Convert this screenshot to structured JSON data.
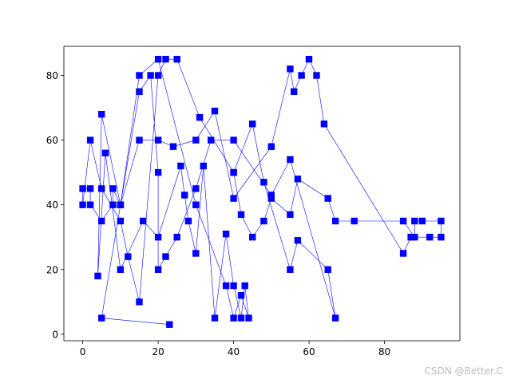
{
  "watermark": "CSDN @Better.C",
  "chart_data": {
    "type": "line",
    "title": "",
    "xlabel": "",
    "ylabel": "",
    "xlim": [
      -5,
      100
    ],
    "ylim": [
      -2,
      89
    ],
    "xticks": [
      0,
      20,
      40,
      60,
      80
    ],
    "yticks": [
      0,
      20,
      40,
      60,
      80
    ],
    "grid": false,
    "legend": "none",
    "marker": "square",
    "color": "#0000ff",
    "series": [
      {
        "x": [
          40,
          45,
          48,
          55,
          57,
          65,
          67,
          55,
          50,
          40,
          34,
          30,
          25,
          22,
          20,
          20,
          18,
          15,
          10,
          8,
          8,
          5,
          2,
          2,
          0,
          0,
          2,
          5,
          10,
          12,
          15,
          20,
          22,
          25,
          31,
          40,
          42,
          45,
          48,
          50,
          55,
          57,
          65,
          67,
          72,
          85,
          88,
          88,
          90,
          95,
          95,
          92,
          87,
          85,
          64,
          62,
          60,
          58,
          56,
          55,
          50,
          40,
          35,
          30,
          24,
          20,
          15,
          10,
          5,
          4,
          6,
          10,
          16,
          20,
          26,
          27,
          28,
          30,
          32,
          35,
          38,
          40,
          42,
          43,
          44,
          42,
          40,
          38,
          30,
          20,
          15,
          10,
          5,
          23
        ],
        "y": [
          50,
          65,
          47,
          20,
          29,
          20,
          5,
          54,
          43,
          60,
          60,
          45,
          30,
          24,
          20,
          50,
          80,
          75,
          40,
          45,
          40,
          35,
          40,
          45,
          45,
          40,
          60,
          45,
          35,
          24,
          10,
          80,
          85,
          85,
          67,
          50,
          37,
          30,
          35,
          42,
          37,
          48,
          42,
          35,
          35,
          35,
          30,
          35,
          35,
          35,
          30,
          30,
          30,
          25,
          65,
          80,
          85,
          80,
          75,
          82,
          58,
          42,
          69,
          60,
          58,
          60,
          60,
          40,
          68,
          18,
          56,
          20,
          35,
          30,
          52,
          43,
          35,
          25,
          52,
          5,
          31,
          15,
          5,
          15,
          5,
          12,
          5,
          15,
          40,
          85,
          80,
          40,
          5,
          3
        ]
      }
    ]
  }
}
